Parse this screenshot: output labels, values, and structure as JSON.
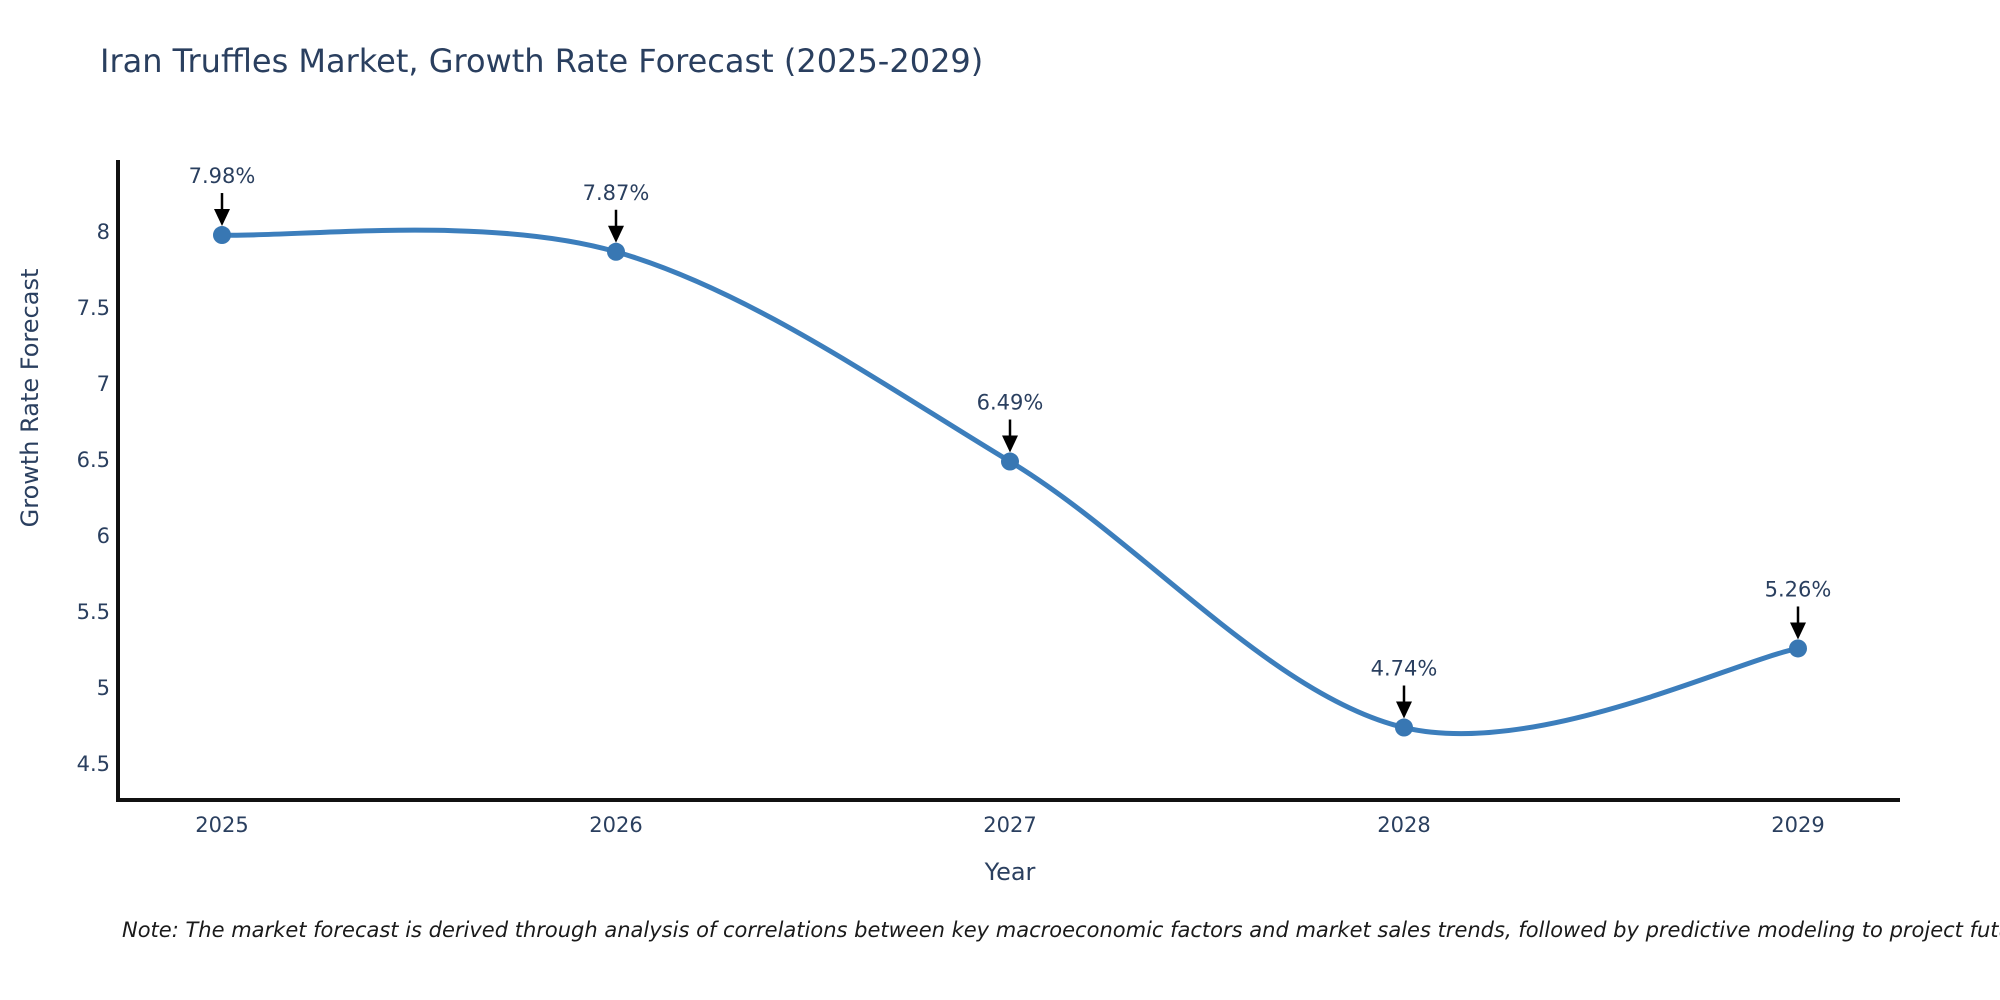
{
  "note": "Note: The market forecast is derived through analysis of correlations between key macroeconomic factors and market sales trends, followed by predictive modeling to project future sales.",
  "chart_data": {
    "type": "line",
    "title": "Iran Truffles Market, Growth Rate Forecast (2025-2029)",
    "xlabel": "Year",
    "ylabel": "Growth Rate Forecast",
    "x": [
      2025,
      2026,
      2027,
      2028,
      2029
    ],
    "values": [
      7.98,
      7.87,
      6.49,
      4.74,
      5.26
    ],
    "point_labels": [
      "7.98%",
      "7.87%",
      "6.49%",
      "4.74%",
      "5.26%"
    ],
    "x_tick_labels": [
      "2025",
      "2026",
      "2027",
      "2028",
      "2029"
    ],
    "y_tick_values": [
      8,
      7.5,
      7,
      6.5,
      6,
      5.5,
      5,
      4.5
    ],
    "y_tick_labels": [
      "8",
      "7.5",
      "7",
      "6.5",
      "6",
      "5.5",
      "5",
      "4.5"
    ],
    "ylim": [
      4.26,
      8.47
    ],
    "line_shape": "spline",
    "grid": false,
    "legend": "none",
    "colors": {
      "line": "#3c7ebc",
      "marker": "#3877b3",
      "axis_line": "#111111",
      "text": "#2a3f5f",
      "annotation_text": "#2a3f5f",
      "annotation_arrow": "#000000",
      "background": "#ffffff"
    }
  }
}
